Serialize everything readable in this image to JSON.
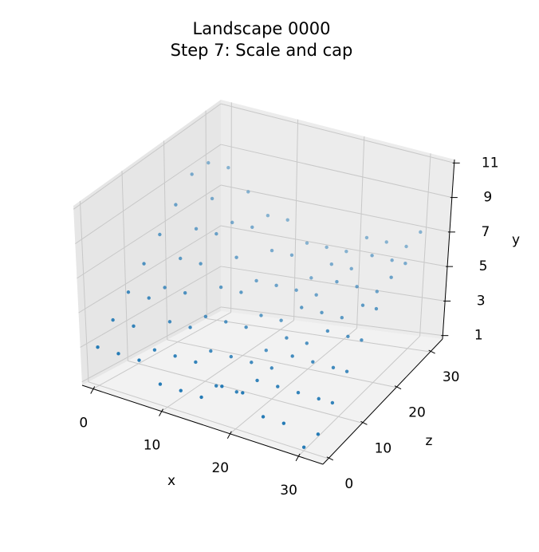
{
  "chart_data": {
    "type": "scatter3d",
    "title": "Landscape 0000",
    "subtitle": "Step 7: Scale and cap",
    "x_label": "x",
    "y_label": "y",
    "z_label": "z",
    "color": "#1f77b4",
    "xlim": [
      -1.6,
      33.6
    ],
    "zlim": [
      -1.6,
      33.6
    ],
    "ylim": [
      0.8,
      11.2
    ],
    "xticks": [
      0,
      10,
      20,
      30
    ],
    "zticks": [
      0,
      10,
      20,
      30
    ],
    "yticks": [
      1,
      3,
      5,
      7,
      9,
      11
    ],
    "x": [
      0,
      3,
      6,
      9,
      12,
      15,
      18,
      21,
      24,
      27,
      30,
      32,
      0,
      3,
      6,
      9,
      12,
      15,
      18,
      21,
      24,
      27,
      30,
      32,
      0,
      3,
      6,
      9,
      12,
      15,
      18,
      21,
      24,
      27,
      30,
      32,
      0,
      3,
      6,
      9,
      12,
      15,
      18,
      21,
      24,
      27,
      30,
      32,
      0,
      3,
      6,
      9,
      12,
      15,
      18,
      21,
      24,
      27,
      30,
      32,
      0,
      3,
      6,
      9,
      12,
      15,
      18,
      21,
      24,
      27,
      30,
      32,
      0,
      3,
      6,
      9,
      12,
      15,
      18,
      21,
      24,
      27,
      30,
      32,
      0,
      3,
      6,
      9,
      12,
      15,
      18,
      21,
      24,
      27,
      30,
      32
    ],
    "z": [
      0,
      0,
      0,
      0,
      0,
      0,
      0,
      0,
      0,
      0,
      0,
      0,
      4,
      4,
      4,
      4,
      4,
      4,
      4,
      4,
      4,
      4,
      4,
      4,
      8,
      8,
      8,
      8,
      8,
      8,
      8,
      8,
      8,
      8,
      8,
      8,
      12,
      12,
      12,
      12,
      12,
      12,
      12,
      12,
      12,
      12,
      12,
      12,
      16,
      16,
      16,
      16,
      16,
      16,
      16,
      16,
      16,
      16,
      16,
      16,
      20,
      20,
      20,
      20,
      20,
      20,
      20,
      20,
      20,
      20,
      20,
      20,
      24,
      24,
      24,
      24,
      24,
      24,
      24,
      24,
      24,
      24,
      24,
      24,
      28,
      28,
      28,
      28,
      28,
      28,
      28,
      28,
      28,
      28,
      28,
      28
    ],
    "y": [
      3,
      3,
      3,
      2,
      2,
      2,
      3,
      3,
      2,
      2,
      1,
      2,
      4,
      4,
      3,
      3,
      3,
      2,
      2,
      3,
      3,
      3,
      3,
      3,
      5,
      5,
      4,
      4,
      3,
      3,
      3,
      3,
      4,
      4,
      4,
      4,
      6,
      5,
      5,
      4,
      4,
      4,
      3,
      4,
      4,
      5,
      5,
      5,
      7,
      6,
      6,
      5,
      5,
      4,
      4,
      5,
      5,
      5,
      6,
      6,
      8,
      7,
      7,
      6,
      5,
      5,
      5,
      5,
      6,
      6,
      6,
      7,
      9,
      8,
      7,
      7,
      6,
      6,
      5,
      6,
      6,
      7,
      7,
      7,
      9,
      9,
      8,
      7,
      7,
      6,
      6,
      6,
      7,
      7,
      7,
      8
    ]
  }
}
